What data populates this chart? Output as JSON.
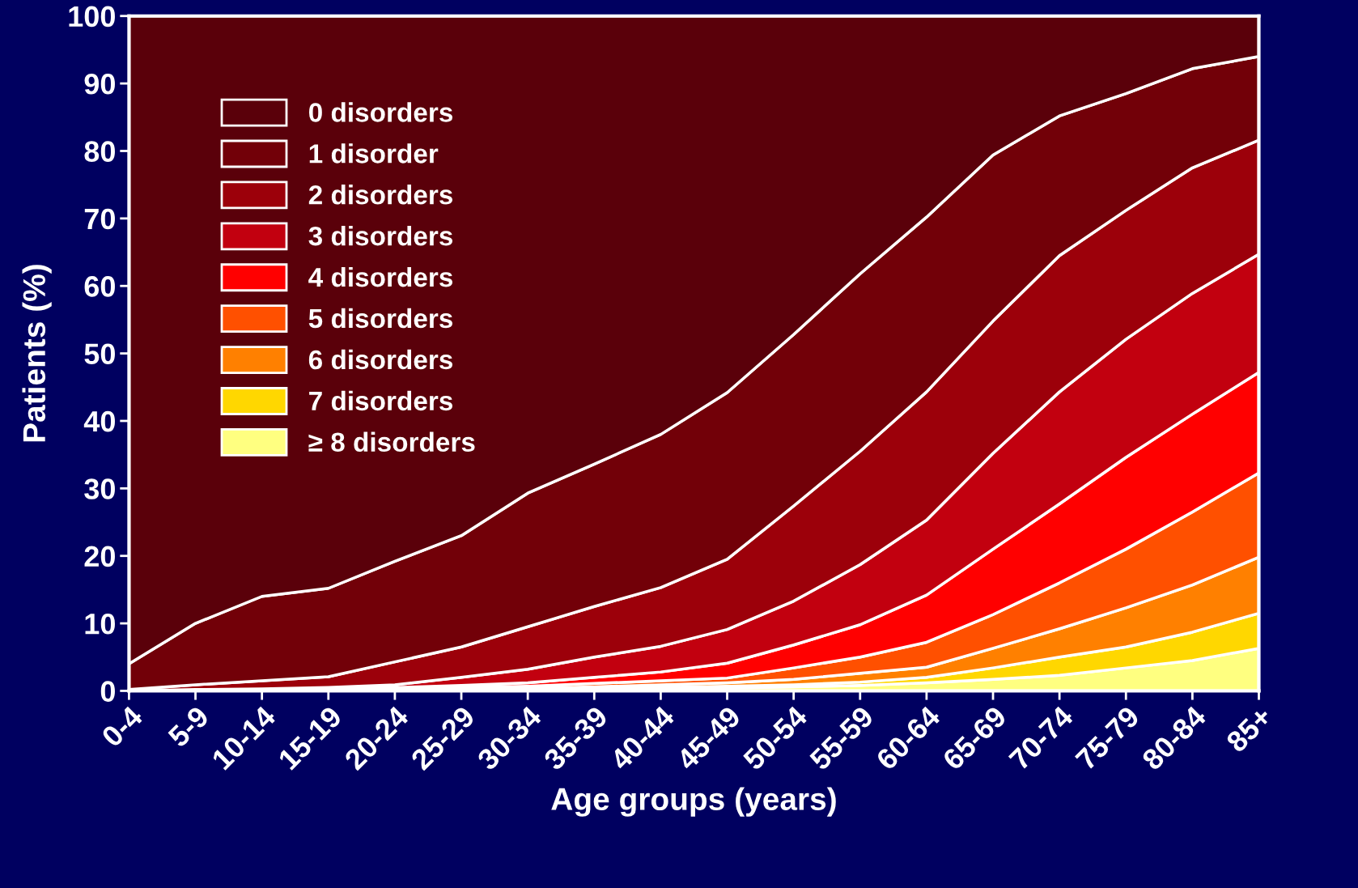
{
  "chart_data": {
    "type": "area",
    "stacked": true,
    "xlabel": "Age groups (years)",
    "ylabel": "Patients (%)",
    "categories": [
      "0-4",
      "5-9",
      "10-14",
      "15-19",
      "20-24",
      "25-29",
      "30-34",
      "35-39",
      "40-44",
      "45-49",
      "50-54",
      "55-59",
      "60-64",
      "65-69",
      "70-74",
      "75-79",
      "80-84",
      "85+"
    ],
    "ylim": [
      0,
      100
    ],
    "yticks": [
      0,
      10,
      20,
      30,
      40,
      50,
      60,
      70,
      80,
      90,
      100
    ],
    "grid": false,
    "legend": "top left",
    "series": [
      {
        "name": "≥ 8 disorders",
        "color": "#ffff80",
        "values": [
          0,
          0,
          0,
          0,
          0,
          0,
          0.1,
          0.2,
          0.3,
          0.4,
          0.6,
          0.8,
          1.2,
          1.7,
          2.3,
          3.4,
          4.5,
          6.3
        ]
      },
      {
        "name": "7 disorders",
        "color": "#ffd700",
        "values": [
          0,
          0,
          0,
          0,
          0,
          0.1,
          0.1,
          0.1,
          0.2,
          0.3,
          0.3,
          0.5,
          0.8,
          1.7,
          2.7,
          3.1,
          4.2,
          5.2
        ]
      },
      {
        "name": "6 disorders",
        "color": "#ff8000",
        "values": [
          0,
          0,
          0,
          0,
          0.1,
          0.1,
          0.2,
          0.3,
          0.4,
          0.5,
          0.8,
          1.3,
          1.5,
          2.9,
          4.2,
          5.8,
          7.0,
          8.3
        ]
      },
      {
        "name": "5 disorders",
        "color": "#ff5000",
        "values": [
          0,
          0,
          0,
          0.1,
          0.2,
          0.3,
          0.3,
          0.5,
          0.6,
          0.7,
          1.7,
          2.4,
          3.7,
          5.0,
          6.8,
          8.7,
          10.8,
          12.5
        ]
      },
      {
        "name": "4 disorders",
        "color": "#ff0000",
        "values": [
          0,
          0,
          0.1,
          0.2,
          0.2,
          0.3,
          0.5,
          0.9,
          1.3,
          2.2,
          3.4,
          4.8,
          7.0,
          9.7,
          11.7,
          13.6,
          14.5,
          14.9
        ]
      },
      {
        "name": "3 disorders",
        "color": "#c2000f",
        "values": [
          0,
          0.2,
          0.2,
          0.2,
          0.4,
          1.2,
          2.0,
          3.0,
          3.8,
          5.0,
          6.5,
          8.9,
          11.1,
          14.2,
          16.6,
          17.5,
          17.9,
          17.5
        ]
      },
      {
        "name": "2 disorders",
        "color": "#9c000a",
        "values": [
          0.2,
          0.7,
          1.2,
          1.6,
          3.4,
          4.5,
          6.3,
          7.5,
          8.7,
          10.4,
          14.1,
          16.8,
          19.0,
          19.6,
          20.2,
          19.1,
          18.6,
          16.9
        ]
      },
      {
        "name": "1 disorder",
        "color": "#720008",
        "values": [
          3.8,
          9.1,
          12.5,
          13.1,
          14.9,
          16.5,
          19.8,
          21.1,
          22.7,
          24.7,
          25.4,
          26.3,
          25.9,
          24.6,
          20.7,
          17.3,
          14.7,
          12.4
        ]
      },
      {
        "name": "0 disorders",
        "color": "#5a000a",
        "values": [
          96,
          90,
          86,
          84.8,
          80.8,
          77,
          70.7,
          66.4,
          62,
          55.8,
          47.2,
          38.2,
          29.8,
          20.6,
          14.8,
          11.5,
          7.8,
          6
        ]
      }
    ]
  }
}
